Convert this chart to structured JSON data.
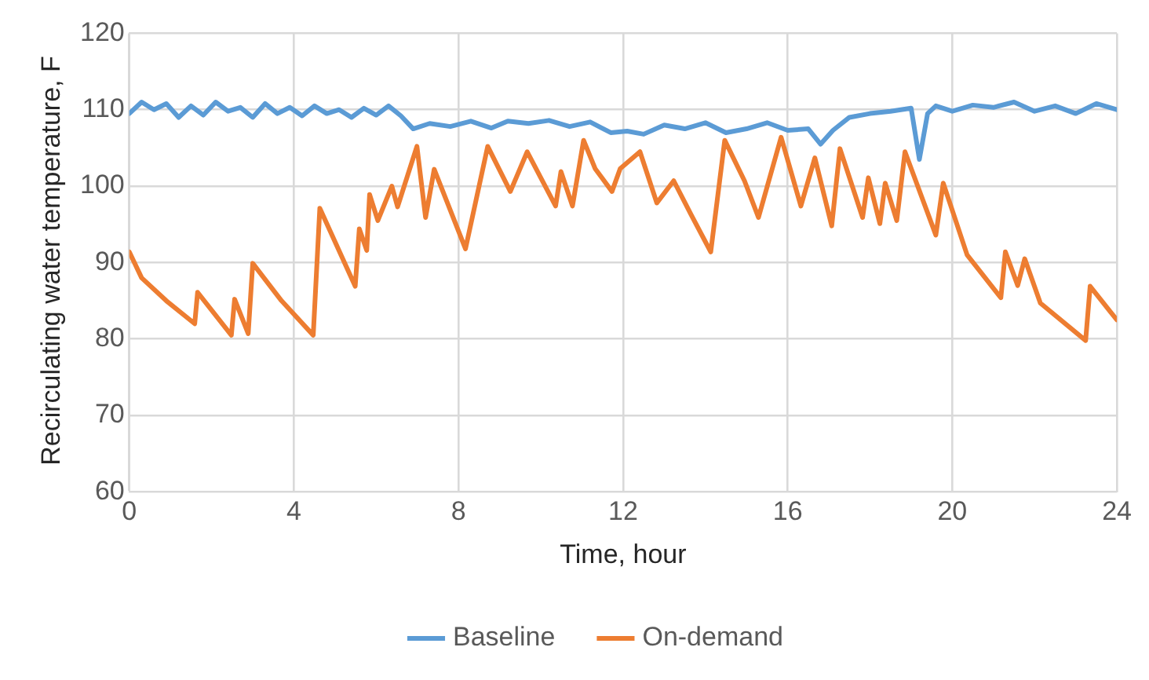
{
  "chart_data": {
    "type": "line",
    "xlabel": "Time, hour",
    "ylabel": "Recirculating water temperature, F",
    "xlim": [
      0,
      24
    ],
    "xticks": [
      0,
      4,
      8,
      12,
      16,
      20,
      24
    ],
    "ylim": [
      60,
      120
    ],
    "yticks": [
      60,
      70,
      80,
      90,
      100,
      110,
      120
    ],
    "grid": true,
    "legend": "bottom",
    "marker": "none",
    "line_style": "solid",
    "series": [
      {
        "name": "Baseline",
        "color": "#5b9bd5",
        "x": [
          0,
          0.3,
          0.6,
          0.9,
          1.2,
          1.5,
          1.8,
          2.1,
          2.4,
          2.7,
          3.0,
          3.3,
          3.6,
          3.9,
          4.2,
          4.5,
          4.8,
          5.1,
          5.4,
          5.7,
          6.0,
          6.3,
          6.6,
          6.9,
          7.3,
          7.8,
          8.3,
          8.8,
          9.2,
          9.7,
          10.2,
          10.7,
          11.2,
          11.7,
          12.1,
          12.5,
          13.0,
          13.5,
          14.0,
          14.5,
          15.0,
          15.5,
          16.0,
          16.5,
          16.8,
          17.1,
          17.5,
          18.0,
          18.5,
          19.0,
          19.2,
          19.4,
          19.6,
          20.0,
          20.5,
          21.0,
          21.5,
          22.0,
          22.5,
          23.0,
          23.5,
          24.0
        ],
        "values": [
          109.5,
          111,
          110,
          110.8,
          109,
          110.5,
          109.3,
          111,
          109.8,
          110.3,
          109,
          110.8,
          109.5,
          110.3,
          109.2,
          110.5,
          109.5,
          110,
          109,
          110.2,
          109.3,
          110.5,
          109.2,
          107.5,
          108.2,
          107.8,
          108.5,
          107.6,
          108.5,
          108.2,
          108.6,
          107.8,
          108.4,
          107,
          107.2,
          106.8,
          108,
          107.5,
          108.3,
          107,
          107.5,
          108.3,
          107.3,
          107.5,
          105.5,
          107.3,
          109,
          109.5,
          109.8,
          110.2,
          103.5,
          109.5,
          110.5,
          109.8,
          110.6,
          110.3,
          111,
          109.8,
          110.5,
          109.5,
          110.8,
          110
        ]
      },
      {
        "name": "On-demand",
        "color": "#ed7d31",
        "x": [
          0,
          0.3,
          0.9,
          1.59,
          1.66,
          2.48,
          2.56,
          2.89,
          3.0,
          3.7,
          4.47,
          4.63,
          5.49,
          5.59,
          5.77,
          5.84,
          6.04,
          6.38,
          6.52,
          6.99,
          7.2,
          7.41,
          8.17,
          8.71,
          9.26,
          9.67,
          10.36,
          10.49,
          10.77,
          11.04,
          11.32,
          11.73,
          11.93,
          12.41,
          12.82,
          13.23,
          13.65,
          14.13,
          14.47,
          14.95,
          15.29,
          15.84,
          16.32,
          16.66,
          17.07,
          17.27,
          17.82,
          17.96,
          18.24,
          18.37,
          18.65,
          18.85,
          19.6,
          19.78,
          20.36,
          21.18,
          21.29,
          21.59,
          21.76,
          22.14,
          23.24,
          23.35,
          23.85,
          24.0
        ],
        "values": [
          91.4,
          88,
          85,
          82,
          86.1,
          80.5,
          85.2,
          80.7,
          89.9,
          85,
          80.5,
          97.1,
          86.9,
          94.4,
          91.6,
          98.9,
          95.5,
          100,
          97.3,
          105.2,
          95.9,
          102.2,
          91.8,
          105.2,
          99.3,
          104.5,
          97.4,
          101.9,
          97.4,
          106,
          102.3,
          99.3,
          102.3,
          104.5,
          97.8,
          100.7,
          96.3,
          91.4,
          106,
          100.7,
          95.9,
          106.4,
          97.4,
          103.7,
          94.8,
          104.9,
          95.9,
          101.1,
          95.1,
          100.4,
          95.5,
          104.5,
          93.6,
          100.4,
          91,
          85.4,
          91.4,
          87,
          90.5,
          84.7,
          79.8,
          86.9,
          83.5,
          82.5
        ]
      }
    ]
  }
}
